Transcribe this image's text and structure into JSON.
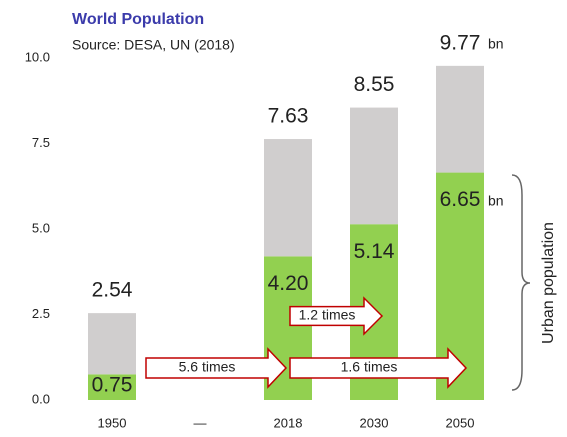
{
  "chart_data": {
    "type": "stacked_bar",
    "title": "World Population",
    "subtitle": "Source: DESA, UN (2018)",
    "categories": [
      "1950",
      "—",
      "2018",
      "2030",
      "2050"
    ],
    "series": [
      {
        "color": "#92d050",
        "values": [
          0.75,
          null,
          4.2,
          5.14,
          6.65
        ],
        "value_labels": [
          "0.75",
          null,
          "4.20",
          "5.14",
          "6.65"
        ]
      },
      {
        "color": "#d0cece",
        "values": [
          1.79,
          null,
          3.43,
          3.41,
          3.12
        ]
      }
    ],
    "totals": [
      2.54,
      null,
      7.63,
      8.55,
      9.77
    ],
    "unit": "bn",
    "ylim": [
      0,
      10
    ],
    "yticks": [
      {
        "value": 0,
        "label": "0.0"
      },
      2.5,
      {
        "value": 5,
        "label": "5.0"
      },
      7.5,
      {
        "value": 10,
        "label": "10.0"
      }
    ],
    "annotations": [
      "5.6 times",
      "1.6 times",
      "1.2 times"
    ],
    "bracket_label": "Urban population"
  }
}
